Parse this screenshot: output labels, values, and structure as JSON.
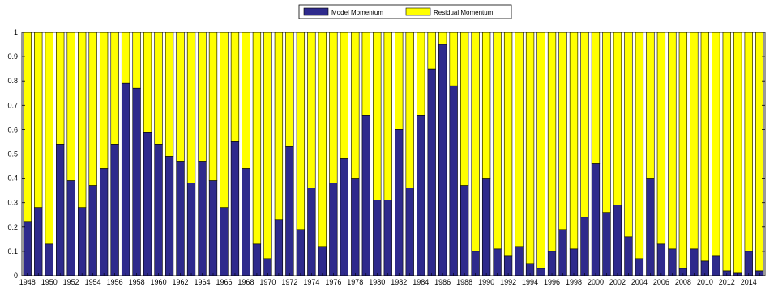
{
  "chart_data": {
    "type": "bar",
    "stacked": true,
    "title": "",
    "xlabel": "",
    "ylabel": "",
    "ylim": [
      0,
      1
    ],
    "yticks": [
      "0",
      "0.1",
      "0.2",
      "0.3",
      "0.4",
      "0.5",
      "0.6",
      "0.7",
      "0.8",
      "0.9",
      "1"
    ],
    "legend_position": "top-center",
    "grid": false,
    "x_start": 1948,
    "x_tick_every": 2,
    "series": [
      {
        "name": "Model Momentum",
        "color": "#2e2a8c",
        "values": [
          0.22,
          0.28,
          0.13,
          0.54,
          0.39,
          0.28,
          0.37,
          0.44,
          0.54,
          0.79,
          0.77,
          0.59,
          0.54,
          0.49,
          0.47,
          0.38,
          0.47,
          0.39,
          0.28,
          0.55,
          0.44,
          0.13,
          0.07,
          0.23,
          0.53,
          0.19,
          0.36,
          0.12,
          0.38,
          0.48,
          0.4,
          0.66,
          0.31,
          0.31,
          0.6,
          0.36,
          0.66,
          0.85,
          0.95,
          0.78,
          0.37,
          0.1,
          0.4,
          0.11,
          0.08,
          0.12,
          0.05,
          0.03,
          0.1,
          0.19,
          0.11,
          0.24,
          0.46,
          0.26,
          0.29,
          0.16,
          0.07,
          0.4,
          0.13,
          0.11,
          0.03,
          0.11,
          0.06,
          0.08,
          0.02,
          0.01,
          0.1,
          0.02
        ]
      },
      {
        "name": "Residual Momentum",
        "color": "#ffff00",
        "values": [
          0.78,
          0.72,
          0.87,
          0.46,
          0.61,
          0.72,
          0.63,
          0.56,
          0.46,
          0.21,
          0.23,
          0.41,
          0.46,
          0.51,
          0.53,
          0.62,
          0.53,
          0.61,
          0.72,
          0.45,
          0.56,
          0.87,
          0.93,
          0.77,
          0.47,
          0.81,
          0.64,
          0.88,
          0.62,
          0.52,
          0.6,
          0.34,
          0.69,
          0.69,
          0.4,
          0.64,
          0.34,
          0.15,
          0.05,
          0.22,
          0.63,
          0.9,
          0.6,
          0.89,
          0.92,
          0.88,
          0.95,
          0.97,
          0.9,
          0.81,
          0.89,
          0.76,
          0.54,
          0.74,
          0.71,
          0.84,
          0.93,
          0.6,
          0.87,
          0.89,
          0.97,
          0.89,
          0.94,
          0.92,
          0.98,
          0.99,
          0.9,
          0.98
        ]
      }
    ]
  }
}
